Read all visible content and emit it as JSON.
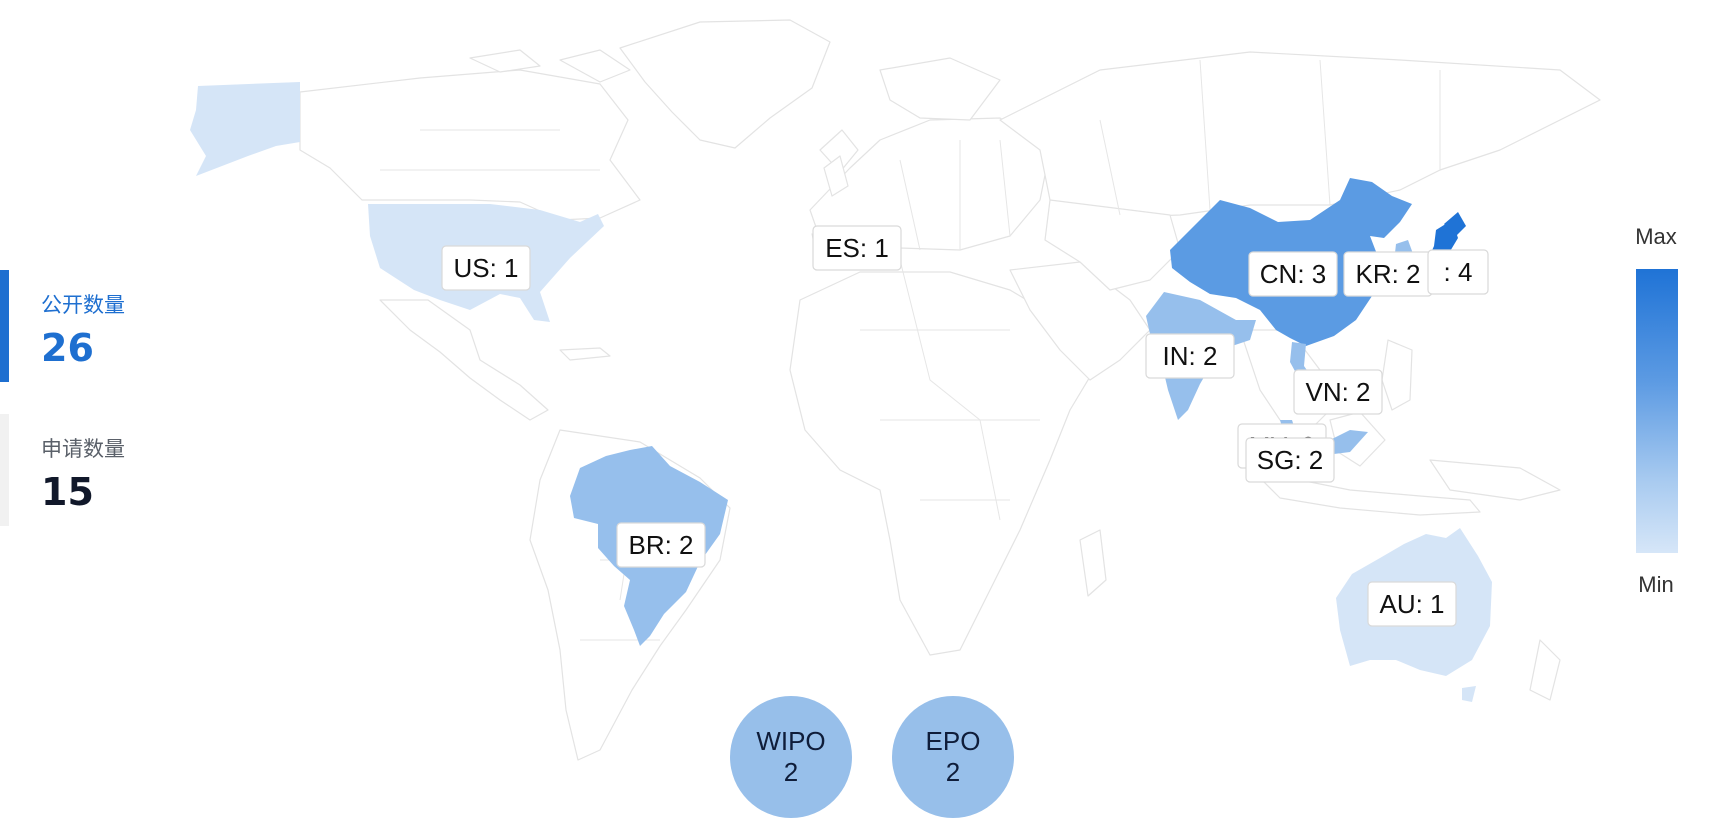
{
  "stats": {
    "published": {
      "label": "公开数量",
      "value": "26"
    },
    "applications": {
      "label": "申请数量",
      "value": "15"
    }
  },
  "map": {
    "countries": [
      {
        "code": "US",
        "value": 1,
        "label": "US: 1"
      },
      {
        "code": "ES",
        "value": 1,
        "label": "ES: 1"
      },
      {
        "code": "CN",
        "value": 3,
        "label": "CN: 3"
      },
      {
        "code": "KR",
        "value": 2,
        "label": "KR: 2"
      },
      {
        "code": "JP",
        "value": 4,
        "label": ": 4"
      },
      {
        "code": "IN",
        "value": 2,
        "label": "IN: 2"
      },
      {
        "code": "VN",
        "value": 2,
        "label": "VN: 2"
      },
      {
        "code": "MY",
        "value": 2,
        "label": "MY: 2"
      },
      {
        "code": "SG",
        "value": 2,
        "label": "SG: 2"
      },
      {
        "code": "BR",
        "value": 2,
        "label": "BR: 2"
      },
      {
        "code": "AU",
        "value": 1,
        "label": "AU: 1"
      }
    ],
    "offices": [
      {
        "name": "WIPO",
        "value": "2"
      },
      {
        "name": "EPO",
        "value": "2"
      }
    ],
    "colors": {
      "v1": "#d5e5f7",
      "v2": "#96bfec",
      "v3": "#5b9be3",
      "v4": "#1f73d6",
      "office": "#97bfea",
      "active_accent": "#1e6fd0"
    }
  },
  "legend": {
    "max": "Max",
    "min": "Min"
  }
}
